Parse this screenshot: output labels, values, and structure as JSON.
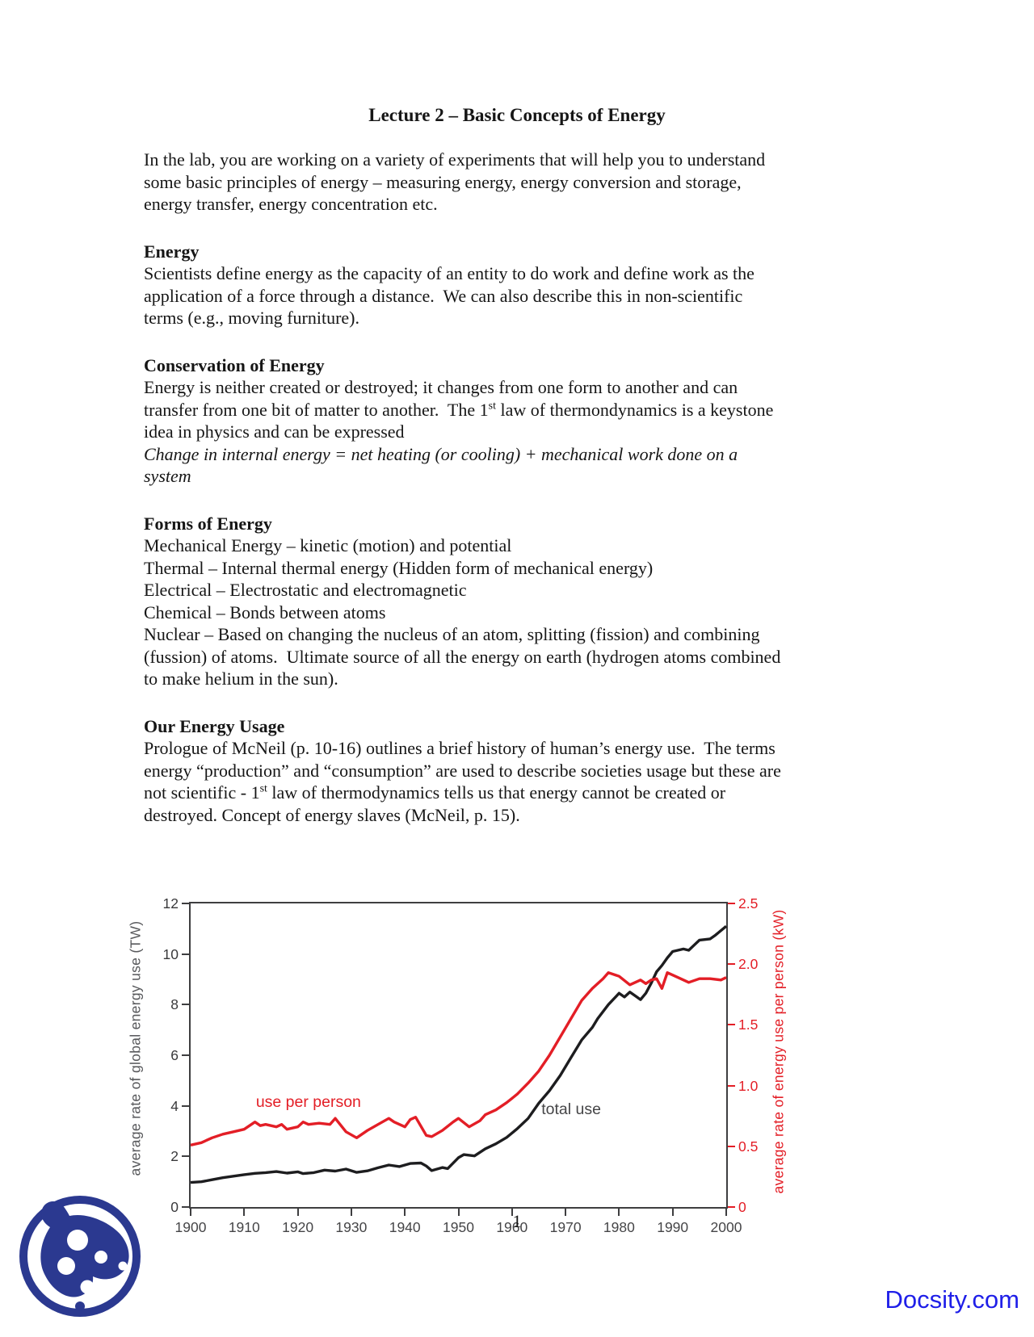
{
  "title": "Lecture 2 – Basic Concepts of Energy",
  "intro": "In the lab, you are working on a variety of experiments that will help you to understand\nsome basic principles of energy – measuring energy, energy conversion and storage,\nenergy transfer, energy concentration etc.",
  "sections": {
    "energy": {
      "heading": "Energy",
      "body": "Scientists define energy as the capacity of an entity to do work and define work as the\napplication of a force through a distance.  We can also describe this in non-scientific\nterms (e.g., moving furniture)."
    },
    "conservation": {
      "heading": "Conservation of Energy",
      "body_before_sup": "Energy is neither created or destroyed; it changes from one form to another and can\ntransfer from one bit of matter to another.  The 1",
      "sup": "st",
      "body_after_sup": " law of thermondynamics is a keystone\nidea in physics and can be expressed",
      "formula": "Change in internal energy = net heating (or cooling) + mechanical work done on a\nsystem"
    },
    "forms": {
      "heading": "Forms of Energy",
      "items": [
        "Mechanical Energy – kinetic (motion) and potential",
        "Thermal – Internal thermal energy (Hidden form of mechanical energy)",
        "Electrical – Electrostatic and electromagnetic",
        "Chemical – Bonds between atoms",
        "Nuclear – Based on changing the nucleus of an atom, splitting (fission) and combining\n(fussion) of atoms.  Ultimate source of all the energy on earth (hydrogen atoms combined\nto make helium in the sun)."
      ]
    },
    "usage": {
      "heading": "Our Energy Usage",
      "body_before_sup": "Prologue of McNeil (p. 10-16) outlines a brief history of human’s energy use.  The terms\nenergy “production” and “consumption” are used to describe societies usage but these are\nnot scientific - 1",
      "sup": "st",
      "body_after_sup": " law of thermodynamics tells us that energy cannot be created or\ndestroyed. Concept of energy slaves (McNeil, p. 15)."
    }
  },
  "chart_data": {
    "type": "line",
    "title": "",
    "xlabel": "",
    "ylabel_left": "average rate of global energy use  (TW)",
    "ylabel_right": "average rate of energy use per person (kW)",
    "xlim": [
      1900,
      2000
    ],
    "ylim_left": [
      0,
      12
    ],
    "ylim_right": [
      0,
      2.5
    ],
    "x_ticks": [
      1900,
      1910,
      1920,
      1930,
      1940,
      1950,
      1960,
      1970,
      1980,
      1990,
      2000
    ],
    "left_ticks": [
      0,
      2,
      4,
      6,
      8,
      10,
      12
    ],
    "right_ticks": [
      0,
      0.5,
      1.0,
      1.5,
      2.0,
      2.5
    ],
    "grid": false,
    "legend_position": "inline-labels",
    "series": [
      {
        "name": "total use",
        "axis": "left",
        "units": "TW",
        "color": "#1d1d1f",
        "points": [
          [
            1900,
            0.97
          ],
          [
            1902,
            1.0
          ],
          [
            1904,
            1.08
          ],
          [
            1906,
            1.16
          ],
          [
            1908,
            1.22
          ],
          [
            1910,
            1.28
          ],
          [
            1912,
            1.33
          ],
          [
            1914,
            1.36
          ],
          [
            1916,
            1.4
          ],
          [
            1918,
            1.34
          ],
          [
            1920,
            1.39
          ],
          [
            1921,
            1.32
          ],
          [
            1923,
            1.36
          ],
          [
            1925,
            1.46
          ],
          [
            1927,
            1.42
          ],
          [
            1929,
            1.5
          ],
          [
            1931,
            1.37
          ],
          [
            1933,
            1.43
          ],
          [
            1935,
            1.55
          ],
          [
            1937,
            1.66
          ],
          [
            1939,
            1.6
          ],
          [
            1941,
            1.72
          ],
          [
            1943,
            1.74
          ],
          [
            1944,
            1.62
          ],
          [
            1945,
            1.44
          ],
          [
            1947,
            1.56
          ],
          [
            1948,
            1.52
          ],
          [
            1950,
            1.95
          ],
          [
            1951,
            2.07
          ],
          [
            1953,
            2.02
          ],
          [
            1955,
            2.3
          ],
          [
            1957,
            2.5
          ],
          [
            1959,
            2.75
          ],
          [
            1961,
            3.1
          ],
          [
            1963,
            3.5
          ],
          [
            1965,
            4.1
          ],
          [
            1967,
            4.6
          ],
          [
            1969,
            5.2
          ],
          [
            1971,
            5.9
          ],
          [
            1973,
            6.6
          ],
          [
            1975,
            7.1
          ],
          [
            1976,
            7.45
          ],
          [
            1978,
            8.0
          ],
          [
            1980,
            8.45
          ],
          [
            1981,
            8.3
          ],
          [
            1982,
            8.5
          ],
          [
            1983,
            8.35
          ],
          [
            1984,
            8.2
          ],
          [
            1985,
            8.45
          ],
          [
            1986,
            8.85
          ],
          [
            1987,
            9.3
          ],
          [
            1988,
            9.55
          ],
          [
            1989,
            9.85
          ],
          [
            1990,
            10.1
          ],
          [
            1992,
            10.2
          ],
          [
            1993,
            10.15
          ],
          [
            1994,
            10.35
          ],
          [
            1995,
            10.55
          ],
          [
            1997,
            10.6
          ],
          [
            1998,
            10.75
          ],
          [
            2000,
            11.1
          ]
        ]
      },
      {
        "name": "use per person",
        "axis": "right",
        "units": "kW",
        "color": "#e31e26",
        "points": [
          [
            1900,
            0.51
          ],
          [
            1902,
            0.53
          ],
          [
            1904,
            0.57
          ],
          [
            1906,
            0.6
          ],
          [
            1908,
            0.62
          ],
          [
            1910,
            0.64
          ],
          [
            1912,
            0.7
          ],
          [
            1913,
            0.67
          ],
          [
            1914,
            0.68
          ],
          [
            1916,
            0.66
          ],
          [
            1917,
            0.68
          ],
          [
            1918,
            0.64
          ],
          [
            1920,
            0.66
          ],
          [
            1921,
            0.7
          ],
          [
            1922,
            0.68
          ],
          [
            1924,
            0.69
          ],
          [
            1926,
            0.68
          ],
          [
            1927,
            0.73
          ],
          [
            1929,
            0.62
          ],
          [
            1931,
            0.57
          ],
          [
            1933,
            0.63
          ],
          [
            1935,
            0.68
          ],
          [
            1937,
            0.73
          ],
          [
            1938,
            0.7
          ],
          [
            1940,
            0.66
          ],
          [
            1941,
            0.72
          ],
          [
            1942,
            0.74
          ],
          [
            1944,
            0.59
          ],
          [
            1945,
            0.58
          ],
          [
            1947,
            0.63
          ],
          [
            1949,
            0.7
          ],
          [
            1950,
            0.73
          ],
          [
            1952,
            0.66
          ],
          [
            1954,
            0.71
          ],
          [
            1955,
            0.76
          ],
          [
            1957,
            0.8
          ],
          [
            1959,
            0.86
          ],
          [
            1961,
            0.93
          ],
          [
            1963,
            1.02
          ],
          [
            1965,
            1.12
          ],
          [
            1967,
            1.25
          ],
          [
            1969,
            1.4
          ],
          [
            1971,
            1.55
          ],
          [
            1973,
            1.7
          ],
          [
            1975,
            1.8
          ],
          [
            1977,
            1.88
          ],
          [
            1978,
            1.93
          ],
          [
            1980,
            1.9
          ],
          [
            1982,
            1.83
          ],
          [
            1984,
            1.87
          ],
          [
            1985,
            1.84
          ],
          [
            1986,
            1.87
          ],
          [
            1987,
            1.88
          ],
          [
            1988,
            1.8
          ],
          [
            1989,
            1.93
          ],
          [
            1991,
            1.89
          ],
          [
            1993,
            1.85
          ],
          [
            1995,
            1.88
          ],
          [
            1997,
            1.88
          ],
          [
            1999,
            1.87
          ],
          [
            2000,
            1.89
          ]
        ]
      }
    ],
    "annotations": [
      {
        "text": "use per person",
        "year": 1922,
        "value_left_units": 4.15,
        "color": "#e31e26",
        "anchor": "middle"
      },
      {
        "text": "total use",
        "year": 1965.5,
        "value_left_units": 3.85,
        "color": "#454547",
        "anchor": "start"
      }
    ]
  },
  "page_number": "1",
  "watermark": "Docsity.com",
  "colors": {
    "line_black": "#1d1d1f",
    "line_red": "#e31e26",
    "axis": "#3e3e40",
    "label_gray": "#57585b",
    "logo_blue": "#2b3990",
    "watermark_blue": "#1f1fe8"
  }
}
